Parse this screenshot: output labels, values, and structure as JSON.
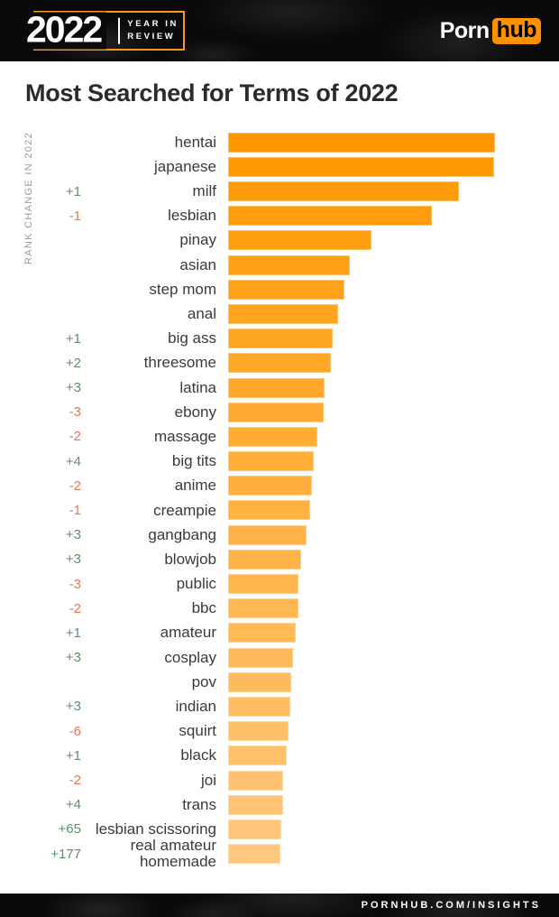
{
  "header": {
    "logo_year": "2022",
    "logo_tagline_line1": "YEAR IN",
    "logo_tagline_line2": "REVIEW",
    "brand_first": "Porn",
    "brand_second": "hub"
  },
  "title": "Most Searched for Terms of 2022",
  "axis_label": "RANK CHANGE IN 2022",
  "footer": {
    "text": "PORNHUB.COM/INSIGHTS"
  },
  "colors": {
    "accent_orange": "#F7971D",
    "hub_orange": "#FF9000",
    "bar_gradient_start": "#FE9801",
    "bar_gradient_end": "#FFC87D",
    "positive_green": "#5C9065",
    "negative_red": "#EC7459"
  },
  "chart_data": {
    "type": "bar",
    "orientation": "horizontal",
    "title": "Most Searched for Terms of 2022",
    "legend": "none",
    "grid": false,
    "value_scale": "relative search volume, % of top term (estimated from bar lengths)",
    "xlim": [
      0,
      100
    ],
    "categories": [
      "hentai",
      "japanese",
      "milf",
      "lesbian",
      "pinay",
      "asian",
      "step mom",
      "anal",
      "big ass",
      "threesome",
      "latina",
      "ebony",
      "massage",
      "big tits",
      "anime",
      "creampie",
      "gangbang",
      "blowjob",
      "public",
      "bbc",
      "amateur",
      "cosplay",
      "pov",
      "indian",
      "squirt",
      "black",
      "joi",
      "trans",
      "lesbian scissoring",
      "real amateur homemade"
    ],
    "rank_changes": [
      "",
      "",
      "+1",
      "-1",
      "",
      "",
      "",
      "",
      "+1",
      "+2",
      "+3",
      "-3",
      "-2",
      "+4",
      "-2",
      "-1",
      "+3",
      "+3",
      "-3",
      "-2",
      "+1",
      "+3",
      "",
      "+3",
      "-6",
      "+1",
      "-2",
      "+4",
      "+65",
      "+177"
    ],
    "values": [
      100,
      99.7,
      86.5,
      76.4,
      53.7,
      45.6,
      43.6,
      41.2,
      39.2,
      38.5,
      36.1,
      35.8,
      33.4,
      32.1,
      31.4,
      30.7,
      29.4,
      27.4,
      26.4,
      26.4,
      25.3,
      24.3,
      23.6,
      23.3,
      22.6,
      22.0,
      20.6,
      20.6,
      19.9,
      19.6
    ]
  }
}
